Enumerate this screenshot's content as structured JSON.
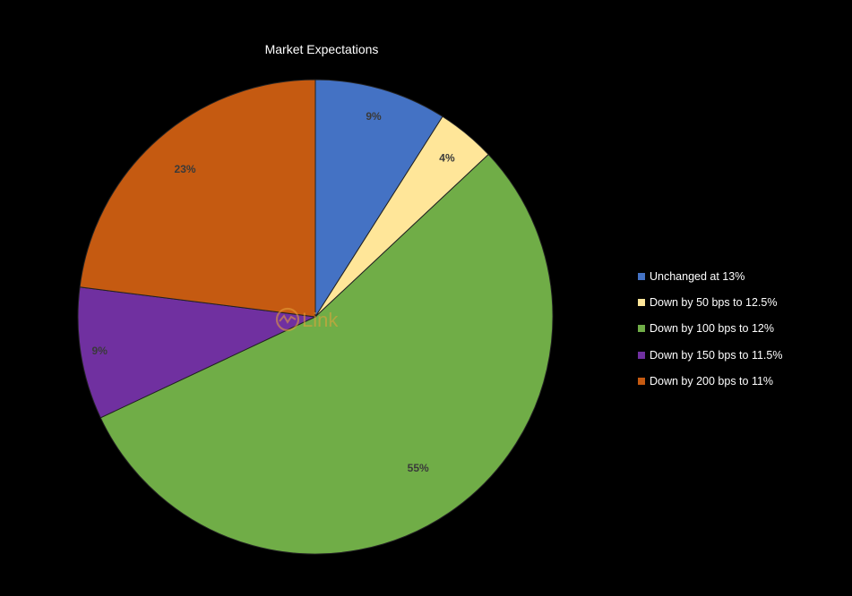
{
  "chart_data": {
    "type": "pie",
    "title": "Market Expectations",
    "categories": [
      "Unchanged at 13%",
      "Down by 50 bps to 12.5%",
      "Down by 100 bps to 12%",
      "Down by 150 bps to 11.5%",
      "Down by 200 bps to 11%"
    ],
    "values": [
      9,
      4,
      55,
      9,
      23
    ],
    "labels": [
      "9%",
      "4%",
      "55%",
      "9%",
      "23%"
    ],
    "colors": [
      "#4472C4",
      "#FFE699",
      "#70AD47",
      "#7030A0",
      "#C55A11"
    ],
    "legend_position": "right"
  },
  "watermark": {
    "text": "Link",
    "color": "#E8A33A"
  }
}
